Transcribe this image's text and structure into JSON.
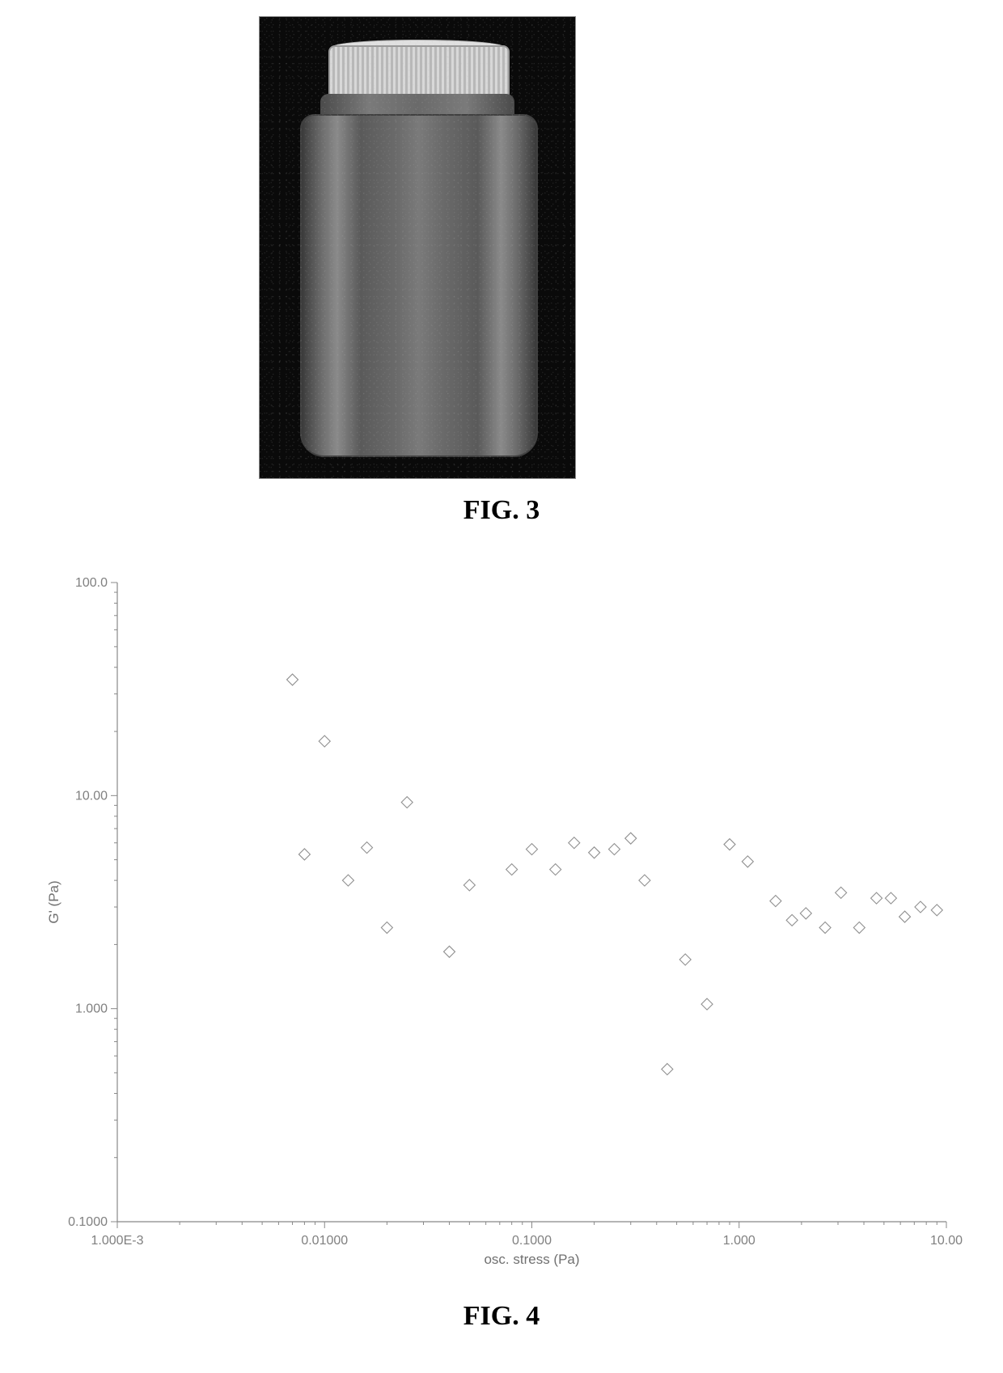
{
  "figure3": {
    "caption": "FIG. 3",
    "caption_fontsize": 34,
    "image_type": "photograph",
    "description": "jar-with-cap",
    "background_color": "#0a0a0a",
    "jar_gradient_colors": [
      "#3a3a3a",
      "#6a6a6a",
      "#8a8a8a",
      "#5a5a5a",
      "#6a6a6a",
      "#7a7a7a",
      "#6a6a6a",
      "#5a5a5a",
      "#8a8a8a",
      "#6a6a6a",
      "#3a3a3a"
    ],
    "cap_color_light": "#d8d8d8",
    "cap_color_dark": "#b8b8b8"
  },
  "figure4": {
    "caption": "FIG. 4",
    "caption_fontsize": 34,
    "chart": {
      "type": "scatter",
      "xlabel": "osc. stress (Pa)",
      "ylabel": "G' (Pa)",
      "label_fontsize": 17,
      "tick_fontsize": 16,
      "x_scale": "log",
      "y_scale": "log",
      "xlim": [
        0.001,
        10.0
      ],
      "ylim": [
        0.1,
        100.0
      ],
      "x_ticks": [
        0.001,
        0.01,
        0.1,
        1.0,
        10.0
      ],
      "x_tick_labels": [
        "1.000E-3",
        "0.01000",
        "0.1000",
        "1.000",
        "10.00"
      ],
      "y_ticks": [
        0.1,
        1.0,
        10.0,
        100.0
      ],
      "y_tick_labels": [
        "0.1000",
        "1.000",
        "10.00",
        "100.0"
      ],
      "background_color": "#ffffff",
      "axis_color": "#888888",
      "tick_color": "#808080",
      "marker_style": "diamond-open",
      "marker_size": 7,
      "marker_stroke_color": "#909090",
      "marker_stroke_width": 1.1,
      "points": [
        {
          "x": 0.007,
          "y": 35.0
        },
        {
          "x": 0.008,
          "y": 5.3
        },
        {
          "x": 0.01,
          "y": 18.0
        },
        {
          "x": 0.013,
          "y": 4.0
        },
        {
          "x": 0.016,
          "y": 5.7
        },
        {
          "x": 0.02,
          "y": 2.4
        },
        {
          "x": 0.025,
          "y": 9.3
        },
        {
          "x": 0.04,
          "y": 1.85
        },
        {
          "x": 0.05,
          "y": 3.8
        },
        {
          "x": 0.08,
          "y": 4.5
        },
        {
          "x": 0.1,
          "y": 5.6
        },
        {
          "x": 0.13,
          "y": 4.5
        },
        {
          "x": 0.16,
          "y": 6.0
        },
        {
          "x": 0.2,
          "y": 5.4
        },
        {
          "x": 0.25,
          "y": 5.6
        },
        {
          "x": 0.3,
          "y": 6.3
        },
        {
          "x": 0.35,
          "y": 4.0
        },
        {
          "x": 0.45,
          "y": 0.52
        },
        {
          "x": 0.55,
          "y": 1.7
        },
        {
          "x": 0.7,
          "y": 1.05
        },
        {
          "x": 0.9,
          "y": 5.9
        },
        {
          "x": 1.1,
          "y": 4.9
        },
        {
          "x": 1.5,
          "y": 3.2
        },
        {
          "x": 1.8,
          "y": 2.6
        },
        {
          "x": 2.1,
          "y": 2.8
        },
        {
          "x": 2.6,
          "y": 2.4
        },
        {
          "x": 3.1,
          "y": 3.5
        },
        {
          "x": 3.8,
          "y": 2.4
        },
        {
          "x": 4.6,
          "y": 3.3
        },
        {
          "x": 5.4,
          "y": 3.3
        },
        {
          "x": 6.3,
          "y": 2.7
        },
        {
          "x": 7.5,
          "y": 3.0
        },
        {
          "x": 9.0,
          "y": 2.9
        }
      ]
    }
  }
}
